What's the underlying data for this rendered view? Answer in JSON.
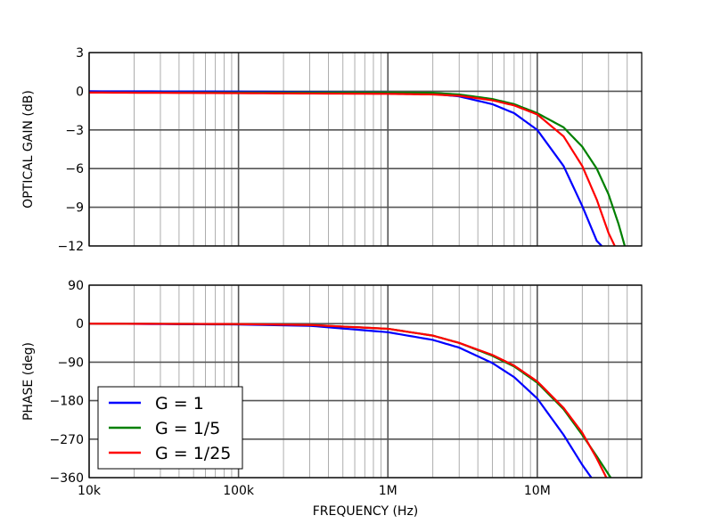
{
  "chart_data": {
    "type": "line",
    "x_label": "FREQUENCY (Hz)",
    "x_scale": "log",
    "x_range": [
      10000,
      50000000
    ],
    "x_tick_values": [
      10000,
      100000,
      1000000,
      10000000
    ],
    "x_tick_labels": [
      "10k",
      "100k",
      "1M",
      "10M"
    ],
    "grid": true,
    "legend": {
      "placement": "lower-left of phase panel",
      "entries": [
        "G = 1",
        "G = 1/5",
        "G = 1/25"
      ]
    },
    "colors": {
      "G = 1": "#0000ff",
      "G = 1/5": "#008000",
      "G = 1/25": "#ff0000"
    },
    "panels": [
      {
        "id": "gain",
        "ylabel": "OPTICAL GAIN (dB)",
        "ylim": [
          -12,
          3
        ],
        "y_ticks": [
          3,
          0,
          -3,
          -6,
          -9,
          -12
        ],
        "y_tick_labels": [
          "3",
          "0",
          "−3",
          "−6",
          "−9",
          "−12"
        ],
        "series": [
          {
            "name": "G = 1",
            "color": "#0000ff",
            "x": [
              10000,
              100000,
              1000000,
              2000000,
              3000000,
              5000000,
              7000000,
              10000000,
              15000000,
              20000000,
              25000000,
              27000000
            ],
            "y": [
              0,
              -0.02,
              -0.1,
              -0.2,
              -0.4,
              -1.0,
              -1.7,
              -3.0,
              -5.8,
              -8.9,
              -11.6,
              -12
            ]
          },
          {
            "name": "G = 1/5",
            "color": "#008000",
            "x": [
              10000,
              100000,
              1000000,
              2000000,
              3000000,
              5000000,
              7000000,
              10000000,
              15000000,
              20000000,
              25000000,
              30000000,
              35000000,
              38500000
            ],
            "y": [
              -0.1,
              -0.1,
              -0.1,
              -0.12,
              -0.25,
              -0.6,
              -1.0,
              -1.7,
              -2.8,
              -4.3,
              -6.0,
              -8.0,
              -10.3,
              -12
            ]
          },
          {
            "name": "G = 1/25",
            "color": "#ff0000",
            "x": [
              10000,
              100000,
              1000000,
              2000000,
              3000000,
              5000000,
              7000000,
              10000000,
              15000000,
              20000000,
              25000000,
              30000000,
              33000000
            ],
            "y": [
              -0.1,
              -0.15,
              -0.2,
              -0.25,
              -0.35,
              -0.7,
              -1.1,
              -1.8,
              -3.5,
              -5.8,
              -8.4,
              -11.0,
              -12
            ]
          }
        ]
      },
      {
        "id": "phase",
        "ylabel": "PHASE (deg)",
        "ylim": [
          -360,
          90
        ],
        "y_ticks": [
          90,
          0,
          -90,
          -180,
          -270,
          -360
        ],
        "y_tick_labels": [
          "90",
          "0",
          "−90",
          "−180",
          "−270",
          "−360"
        ],
        "series": [
          {
            "name": "G = 1",
            "color": "#0000ff",
            "x": [
              10000,
              100000,
              300000,
              1000000,
              2000000,
              3000000,
              5000000,
              7000000,
              10000000,
              15000000,
              20000000,
              23000000
            ],
            "y": [
              0,
              -2,
              -5,
              -20,
              -38,
              -56,
              -92,
              -125,
              -175,
              -260,
              -330,
              -360
            ]
          },
          {
            "name": "G = 1/5",
            "color": "#008000",
            "x": [
              10000,
              100000,
              300000,
              1000000,
              2000000,
              3000000,
              5000000,
              7000000,
              10000000,
              15000000,
              20000000,
              25000000,
              31000000
            ],
            "y": [
              0,
              -1,
              -3,
              -12,
              -28,
              -45,
              -75,
              -100,
              -138,
              -200,
              -260,
              -310,
              -360
            ]
          },
          {
            "name": "G = 1/25",
            "color": "#ff0000",
            "x": [
              10000,
              100000,
              300000,
              1000000,
              2000000,
              3000000,
              5000000,
              7000000,
              10000000,
              15000000,
              20000000,
              25000000,
              29000000
            ],
            "y": [
              0,
              -1,
              -3,
              -12,
              -28,
              -45,
              -73,
              -98,
              -135,
              -197,
              -255,
              -315,
              -360
            ]
          }
        ]
      }
    ]
  }
}
